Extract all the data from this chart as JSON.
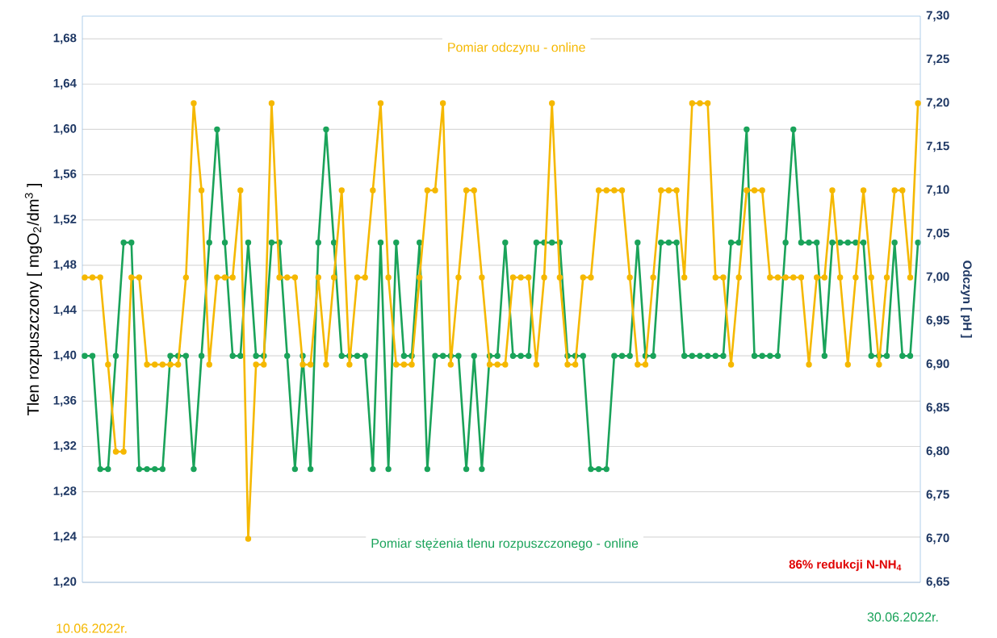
{
  "chart_data": {
    "type": "line",
    "ylabel": "Tlen rozpuszczony [ mgO$_{2}$/dm$^{3}$ ]",
    "y2label": "Odczyn [ pH ]",
    "categories": [
      null,
      null,
      null,
      null,
      null,
      null,
      null,
      null,
      null,
      null,
      null,
      null,
      null,
      null,
      null,
      null,
      null,
      null,
      null,
      null,
      null,
      null,
      null,
      null,
      null,
      null,
      null,
      null,
      null,
      null,
      null,
      null,
      null,
      null,
      null,
      null,
      null,
      null,
      null,
      null,
      null,
      null,
      null,
      null,
      null,
      null,
      null,
      null,
      null,
      null,
      null,
      null,
      null,
      null,
      null,
      null,
      null,
      null,
      null,
      null,
      null,
      null,
      null,
      null,
      null,
      null,
      null,
      null,
      null,
      null,
      null,
      null,
      null,
      null,
      null,
      null,
      null,
      null,
      null,
      null,
      null,
      null,
      null,
      null,
      null,
      null,
      null,
      null,
      null,
      null,
      null,
      null,
      null,
      null,
      null,
      null,
      null,
      null,
      null,
      null,
      null,
      null,
      null,
      null,
      null,
      null,
      null,
      null
    ],
    "series": [
      {
        "name": "Pomiar stężenia  tlenu rozpuszczonego - online",
        "color": "#1aa35a",
        "values": [
          1.4,
          1.4,
          1.3,
          1.3,
          1.4,
          1.5,
          1.5,
          1.3,
          1.3,
          1.3,
          1.3,
          1.4,
          1.4,
          1.4,
          1.3,
          1.4,
          1.5,
          1.6,
          1.5,
          1.4,
          1.4,
          1.5,
          1.4,
          1.4,
          1.5,
          1.5,
          1.4,
          1.3,
          1.4,
          1.3,
          1.5,
          1.6,
          1.5,
          1.4,
          1.4,
          1.4,
          1.4,
          1.3,
          1.5,
          1.3,
          1.5,
          1.4,
          1.4,
          1.5,
          1.3,
          1.4,
          1.4,
          1.4,
          1.4,
          1.3,
          1.4,
          1.3,
          1.4,
          1.4,
          1.5,
          1.4,
          1.4,
          1.4,
          1.5,
          1.5,
          1.5,
          1.5,
          1.4,
          1.4,
          1.4,
          1.3,
          1.3,
          1.3,
          1.4,
          1.4,
          1.4,
          1.5,
          1.4,
          1.4,
          1.5,
          1.5,
          1.5,
          1.4,
          1.4,
          1.4,
          1.4,
          1.4,
          1.4,
          1.5,
          1.5,
          1.6,
          1.4,
          1.4,
          1.4,
          1.4,
          1.5,
          1.6,
          1.5,
          1.5,
          1.5,
          1.4,
          1.5,
          1.5,
          1.5,
          1.5,
          1.5,
          1.4,
          1.4,
          1.4,
          1.5,
          1.4,
          1.4,
          1.5
        ]
      },
      {
        "name": "Pomiar odczynu - online",
        "color": "#f5b800",
        "axis": "y2",
        "values": [
          7.0,
          7.0,
          7.0,
          6.9,
          6.8,
          6.8,
          7.0,
          7.0,
          6.9,
          6.9,
          6.9,
          6.9,
          6.9,
          7.0,
          7.2,
          7.1,
          6.9,
          7.0,
          7.0,
          7.0,
          7.1,
          6.7,
          6.9,
          6.9,
          7.2,
          7.0,
          7.0,
          7.0,
          6.9,
          6.9,
          7.0,
          6.9,
          7.0,
          7.1,
          6.9,
          7.0,
          7.0,
          7.1,
          7.2,
          7.0,
          6.9,
          6.9,
          6.9,
          7.0,
          7.1,
          7.1,
          7.2,
          6.9,
          7.0,
          7.1,
          7.1,
          7.0,
          6.9,
          6.9,
          6.9,
          7.0,
          7.0,
          7.0,
          6.9,
          7.0,
          7.2,
          7.0,
          6.9,
          6.9,
          7.0,
          7.0,
          7.1,
          7.1,
          7.1,
          7.1,
          7.0,
          6.9,
          6.9,
          7.0,
          7.1,
          7.1,
          7.1,
          7.0,
          7.2,
          7.2,
          7.2,
          7.0,
          7.0,
          6.9,
          7.0,
          7.1,
          7.1,
          7.1,
          7.0,
          7.0,
          7.0,
          7.0,
          7.0,
          6.9,
          7.0,
          7.0,
          7.1,
          7.0,
          6.9,
          7.0,
          7.1,
          7.0,
          6.9,
          7.0,
          7.1,
          7.1,
          7.0,
          7.2
        ]
      }
    ],
    "ylim": [
      1.2,
      1.7
    ],
    "yticks": [
      {
        "value": 1.2,
        "label": "1,20"
      },
      {
        "value": 1.24,
        "label": "1,24"
      },
      {
        "value": 1.28,
        "label": "1,28"
      },
      {
        "value": 1.32,
        "label": "1,32"
      },
      {
        "value": 1.36,
        "label": "1,36"
      },
      {
        "value": 1.4,
        "label": "1,40"
      },
      {
        "value": 1.44,
        "label": "1,44"
      },
      {
        "value": 1.48,
        "label": "1,48"
      },
      {
        "value": 1.52,
        "label": "1,52"
      },
      {
        "value": 1.56,
        "label": "1,56"
      },
      {
        "value": 1.6,
        "label": "1,60"
      },
      {
        "value": 1.64,
        "label": "1,64"
      },
      {
        "value": 1.68,
        "label": "1,68"
      }
    ],
    "y2lim": [
      6.65,
      7.3
    ],
    "y2ticks": [
      {
        "value": 6.65,
        "label": "6,65"
      },
      {
        "value": 6.7,
        "label": "6,70"
      },
      {
        "value": 6.75,
        "label": "6,75"
      },
      {
        "value": 6.8,
        "label": "6,80"
      },
      {
        "value": 6.85,
        "label": "6,85"
      },
      {
        "value": 6.9,
        "label": "6,90"
      },
      {
        "value": 6.95,
        "label": "6,95"
      },
      {
        "value": 7.0,
        "label": "7,00"
      },
      {
        "value": 7.05,
        "label": "7,05"
      },
      {
        "value": 7.1,
        "label": "7,10"
      },
      {
        "value": 7.15,
        "label": "7,15"
      },
      {
        "value": 7.2,
        "label": "7,20"
      },
      {
        "value": 7.25,
        "label": "7,25"
      },
      {
        "value": 7.3,
        "label": "7,30"
      }
    ],
    "annotations": [
      "86% redukcji N-NH$_{4}$",
      "10.06.2022r.",
      "30.06.2022r."
    ],
    "grid": "y",
    "marker": "circle",
    "line_style": "solid"
  }
}
